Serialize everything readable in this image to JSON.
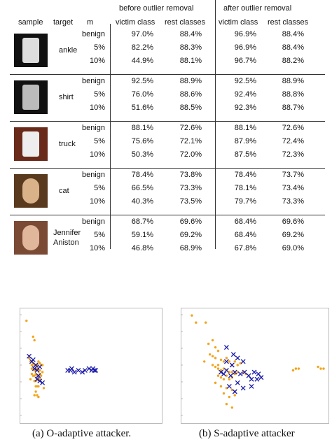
{
  "table": {
    "group_headers": [
      "before outlier removal",
      "after outlier removal"
    ],
    "col_headers": [
      "sample",
      "target",
      "m",
      "victim class",
      "rest classes",
      "victim class",
      "rest classes"
    ],
    "groups": [
      {
        "target": "ankle",
        "thumb": "ankle-boot-trousers",
        "rows": [
          {
            "m": "benign",
            "v1": "97.0%",
            "r1": "88.4%",
            "v2": "96.9%",
            "r2": "88.4%"
          },
          {
            "m": "5%",
            "v1": "82.2%",
            "r1": "88.3%",
            "v2": "96.9%",
            "r2": "88.4%"
          },
          {
            "m": "10%",
            "v1": "44.9%",
            "r1": "88.1%",
            "v2": "96.7%",
            "r2": "88.2%"
          }
        ]
      },
      {
        "target": "shirt",
        "thumb": "dress",
        "rows": [
          {
            "m": "benign",
            "v1": "92.5%",
            "r1": "88.9%",
            "v2": "92.5%",
            "r2": "88.9%"
          },
          {
            "m": "5%",
            "v1": "76.0%",
            "r1": "88.6%",
            "v2": "92.4%",
            "r2": "88.8%"
          },
          {
            "m": "10%",
            "v1": "51.6%",
            "r1": "88.5%",
            "v2": "92.3%",
            "r2": "88.7%"
          }
        ]
      },
      {
        "target": "truck",
        "thumb": "white-car",
        "rows": [
          {
            "m": "benign",
            "v1": "88.1%",
            "r1": "72.6%",
            "v2": "88.1%",
            "r2": "72.6%"
          },
          {
            "m": "5%",
            "v1": "75.6%",
            "r1": "72.1%",
            "v2": "87.9%",
            "r2": "72.4%"
          },
          {
            "m": "10%",
            "v1": "50.3%",
            "r1": "72.0%",
            "v2": "87.5%",
            "r2": "72.3%"
          }
        ]
      },
      {
        "target": "cat",
        "thumb": "dog",
        "rows": [
          {
            "m": "benign",
            "v1": "78.4%",
            "r1": "73.8%",
            "v2": "78.4%",
            "r2": "73.7%"
          },
          {
            "m": "5%",
            "v1": "66.5%",
            "r1": "73.3%",
            "v2": "78.1%",
            "r2": "73.4%"
          },
          {
            "m": "10%",
            "v1": "40.3%",
            "r1": "73.5%",
            "v2": "79.7%",
            "r2": "73.3%"
          }
        ]
      },
      {
        "target": "Jennifer Aniston",
        "target_lines": [
          "Jennifer",
          "Aniston"
        ],
        "thumb": "face",
        "rows": [
          {
            "m": "benign",
            "v1": "68.7%",
            "r1": "69.6%",
            "v2": "68.4%",
            "r2": "69.6%"
          },
          {
            "m": "5%",
            "v1": "59.1%",
            "r1": "69.2%",
            "v2": "68.4%",
            "r2": "69.2%"
          },
          {
            "m": "10%",
            "v1": "46.8%",
            "r1": "68.9%",
            "v2": "67.8%",
            "r2": "69.0%"
          }
        ]
      }
    ]
  },
  "chart_data": [
    {
      "type": "scatter",
      "caption": "(a) O-adaptive attacker.",
      "series": [
        {
          "marker": "dot",
          "color": "#f2a51a",
          "points": [
            [
              2,
              95
            ],
            [
              7,
              86
            ],
            [
              8,
              84
            ],
            [
              5,
              72
            ],
            [
              6,
              70
            ],
            [
              7,
              71
            ],
            [
              8,
              70
            ],
            [
              9,
              70
            ],
            [
              10,
              70
            ],
            [
              11,
              72
            ],
            [
              12,
              71
            ],
            [
              13,
              70
            ],
            [
              6,
              68
            ],
            [
              7,
              68
            ],
            [
              8,
              67
            ],
            [
              9,
              67
            ],
            [
              10,
              68
            ],
            [
              11,
              67
            ],
            [
              12,
              67
            ],
            [
              6,
              65
            ],
            [
              7,
              64
            ],
            [
              8,
              64
            ],
            [
              9,
              65
            ],
            [
              10,
              64
            ],
            [
              11,
              64
            ],
            [
              12,
              65
            ],
            [
              13,
              64
            ],
            [
              14,
              66
            ],
            [
              5,
              62
            ],
            [
              8,
              61
            ],
            [
              9,
              61
            ],
            [
              10,
              62
            ],
            [
              12,
              62
            ],
            [
              9,
              58
            ],
            [
              10,
              58
            ],
            [
              11,
              58
            ],
            [
              15,
              57
            ],
            [
              9,
              55
            ],
            [
              8,
              53
            ],
            [
              10,
              53
            ],
            [
              11,
              52
            ],
            [
              14,
              70
            ],
            [
              4,
              74
            ]
          ]
        },
        {
          "marker": "x",
          "color": "#1a1aaa",
          "points": [
            [
              4,
              75
            ],
            [
              6,
              72
            ],
            [
              7,
              73
            ],
            [
              9,
              70
            ],
            [
              8,
              68
            ],
            [
              10,
              67
            ],
            [
              12,
              69
            ],
            [
              11,
              64
            ],
            [
              10,
              62
            ],
            [
              12,
              61
            ],
            [
              14,
              60
            ],
            [
              33,
              67
            ],
            [
              35,
              67
            ],
            [
              36,
              68
            ],
            [
              38,
              66
            ],
            [
              41,
              67
            ],
            [
              44,
              66
            ],
            [
              46,
              67
            ],
            [
              49,
              68
            ],
            [
              51,
              67
            ],
            [
              52,
              68
            ],
            [
              53,
              67
            ],
            [
              54,
              67
            ]
          ]
        }
      ]
    },
    {
      "type": "scatter",
      "caption": "(b) S-adaptive attacker",
      "series": [
        {
          "marker": "dot",
          "color": "#f2a51a",
          "points": [
            [
              5,
              98
            ],
            [
              8,
              94
            ],
            [
              15,
              94
            ],
            [
              17,
              82
            ],
            [
              20,
              84
            ],
            [
              22,
              80
            ],
            [
              24,
              78
            ],
            [
              18,
              76
            ],
            [
              20,
              75
            ],
            [
              22,
              74
            ],
            [
              26,
              73
            ],
            [
              28,
              72
            ],
            [
              30,
              74
            ],
            [
              32,
              72
            ],
            [
              34,
              70
            ],
            [
              36,
              72
            ],
            [
              38,
              70
            ],
            [
              40,
              71
            ],
            [
              20,
              70
            ],
            [
              22,
              69
            ],
            [
              24,
              68
            ],
            [
              26,
              67
            ],
            [
              28,
              68
            ],
            [
              30,
              67
            ],
            [
              32,
              66
            ],
            [
              34,
              66
            ],
            [
              36,
              65
            ],
            [
              38,
              66
            ],
            [
              42,
              66
            ],
            [
              44,
              65
            ],
            [
              24,
              64
            ],
            [
              26,
              63
            ],
            [
              28,
              62
            ],
            [
              30,
              64
            ],
            [
              32,
              62
            ],
            [
              34,
              63
            ],
            [
              22,
              60
            ],
            [
              26,
              58
            ],
            [
              30,
              57
            ],
            [
              34,
              56
            ],
            [
              28,
              54
            ],
            [
              32,
              52
            ],
            [
              36,
              53
            ],
            [
              30,
              48
            ],
            [
              34,
              46
            ],
            [
              24,
              70
            ],
            [
              14,
              72
            ],
            [
              78,
              67
            ],
            [
              80,
              68
            ],
            [
              82,
              68
            ],
            [
              96,
              69
            ],
            [
              98,
              68
            ],
            [
              100,
              68
            ]
          ]
        },
        {
          "marker": "x",
          "color": "#1a1aaa",
          "points": [
            [
              30,
              80
            ],
            [
              35,
              76
            ],
            [
              30,
              72
            ],
            [
              34,
              70
            ],
            [
              38,
              74
            ],
            [
              42,
              72
            ],
            [
              26,
              66
            ],
            [
              28,
              65
            ],
            [
              30,
              67
            ],
            [
              33,
              64
            ],
            [
              36,
              66
            ],
            [
              40,
              65
            ],
            [
              43,
              66
            ],
            [
              46,
              64
            ],
            [
              50,
              66
            ],
            [
              53,
              65
            ],
            [
              48,
              62
            ],
            [
              52,
              62
            ],
            [
              55,
              63
            ],
            [
              32,
              58
            ],
            [
              38,
              60
            ],
            [
              42,
              57
            ],
            [
              48,
              58
            ],
            [
              36,
              55
            ]
          ]
        }
      ]
    }
  ]
}
